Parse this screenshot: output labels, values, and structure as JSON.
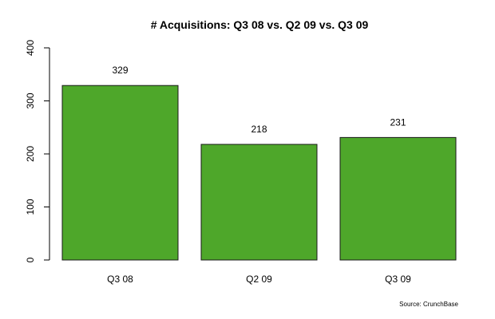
{
  "chart_data": {
    "type": "bar",
    "title": "# Acquisitions: Q3 08 vs. Q2 09 vs. Q3 09",
    "xlabel": "",
    "ylabel": "",
    "categories": [
      "Q3 08",
      "Q2 09",
      "Q3 09"
    ],
    "values": [
      329,
      218,
      231
    ],
    "data_labels": [
      "329",
      "218",
      "231"
    ],
    "ylim": [
      0,
      400
    ],
    "yticks": [
      0,
      100,
      200,
      300,
      400
    ],
    "grid": false,
    "legend": "none",
    "bar_color": "#4ea72a",
    "source": "Source: CrunchBase"
  }
}
